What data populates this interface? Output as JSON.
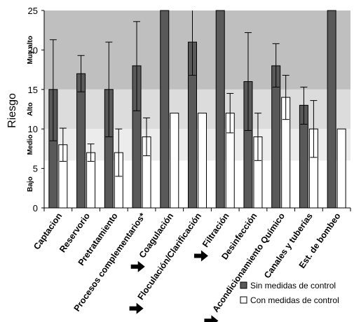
{
  "chart_data": {
    "type": "bar",
    "ylabel": "Riesgo",
    "xlabel": "",
    "ylim": [
      0,
      25
    ],
    "yticks": [
      0,
      5,
      10,
      15,
      20,
      25
    ],
    "grid": false,
    "legend_position": "bottom-right",
    "categories": [
      "Captacion",
      "Reservorio",
      "Pretratamiento",
      "Procesos complementarios*",
      "Coagulación",
      "Floculación/Clarificación",
      "Filtración",
      "Desinfección",
      "Acondicionamiento Químico",
      "Canales y tuberías",
      "Est. de bombeo"
    ],
    "arrow_categories": [
      "Coagulación",
      "Floculación/Clarificación",
      "Filtración",
      "Acondicionamiento Químico"
    ],
    "series": [
      {
        "name": "Sin medidas de control",
        "color": "#595959",
        "values": [
          15,
          17,
          15,
          18,
          25,
          21,
          25,
          16,
          18,
          13,
          25
        ],
        "error_high": [
          21.3,
          19.3,
          21,
          23.6,
          null,
          25,
          null,
          22.2,
          20.8,
          15.3,
          null
        ],
        "error_low": [
          8.5,
          14.7,
          9,
          12.3,
          null,
          16.8,
          null,
          9.8,
          15.3,
          10.6,
          null
        ]
      },
      {
        "name": "Con medidas de control",
        "color": "#ffffff",
        "values": [
          8,
          7,
          7,
          9,
          12,
          12,
          12,
          9,
          14,
          10,
          10
        ],
        "error_high": [
          10.1,
          8.1,
          10,
          11.4,
          null,
          null,
          14.5,
          12,
          16.8,
          13.6,
          null
        ],
        "error_low": [
          5.9,
          5.9,
          4,
          6.6,
          null,
          null,
          9.5,
          6,
          11.2,
          6.4,
          null
        ]
      }
    ],
    "risk_bands": [
      {
        "label": "Bajo",
        "from": 0,
        "to": 6,
        "color": "#ffffff"
      },
      {
        "label": "Medio",
        "from": 6,
        "to": 10,
        "color": "#ececec"
      },
      {
        "label": "Alto",
        "from": 10,
        "to": 15,
        "color": "#dcdcdc"
      },
      {
        "label": "Muy alto",
        "from": 15,
        "to": 25,
        "color": "#bfbfbf"
      }
    ]
  }
}
